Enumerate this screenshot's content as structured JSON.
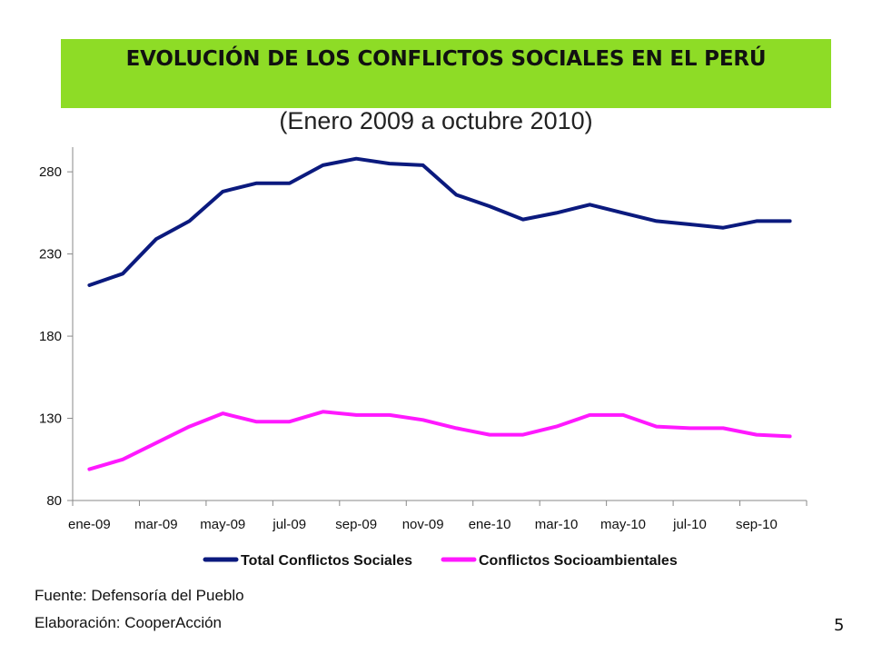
{
  "slide": {
    "title": "EVOLUCIÓN DE LOS CONFLICTOS SOCIALES EN EL PERÚ",
    "subtitle": "(Enero 2009 a octubre 2010)",
    "source": "Fuente: Defensoría del Pueblo",
    "credit": "Elaboración: CooperAcción",
    "page_number": "5",
    "title_bar_color": "#8edc26"
  },
  "chart_data": {
    "type": "line",
    "x": [
      "ene-09",
      "feb-09",
      "mar-09",
      "abr-09",
      "may-09",
      "jun-09",
      "jul-09",
      "ago-09",
      "sep-09",
      "oct-09",
      "nov-09",
      "dic-09",
      "ene-10",
      "feb-10",
      "mar-10",
      "abr-10",
      "may-10",
      "jun-10",
      "jul-10",
      "ago-10",
      "sep-10",
      "oct-10"
    ],
    "x_tick_labels": [
      "ene-09",
      "mar-09",
      "may-09",
      "jul-09",
      "sep-09",
      "nov-09",
      "ene-10",
      "mar-10",
      "may-10",
      "jul-10",
      "sep-10"
    ],
    "y_ticks": [
      80,
      130,
      180,
      230,
      280
    ],
    "ylim": [
      80,
      295
    ],
    "grid": false,
    "legend_position": "bottom",
    "series": [
      {
        "name": "Total Conflictos Sociales",
        "color": "#0b1a7e",
        "values": [
          211,
          218,
          239,
          250,
          268,
          273,
          273,
          284,
          288,
          285,
          284,
          266,
          259,
          251,
          255,
          260,
          255,
          250,
          248,
          246,
          250,
          250
        ]
      },
      {
        "name": "Conflictos Socioambientales",
        "color": "#ff19ff",
        "values": [
          99,
          105,
          115,
          125,
          133,
          128,
          128,
          134,
          132,
          132,
          129,
          124,
          120,
          120,
          125,
          132,
          132,
          125,
          124,
          124,
          120,
          119
        ]
      }
    ]
  }
}
